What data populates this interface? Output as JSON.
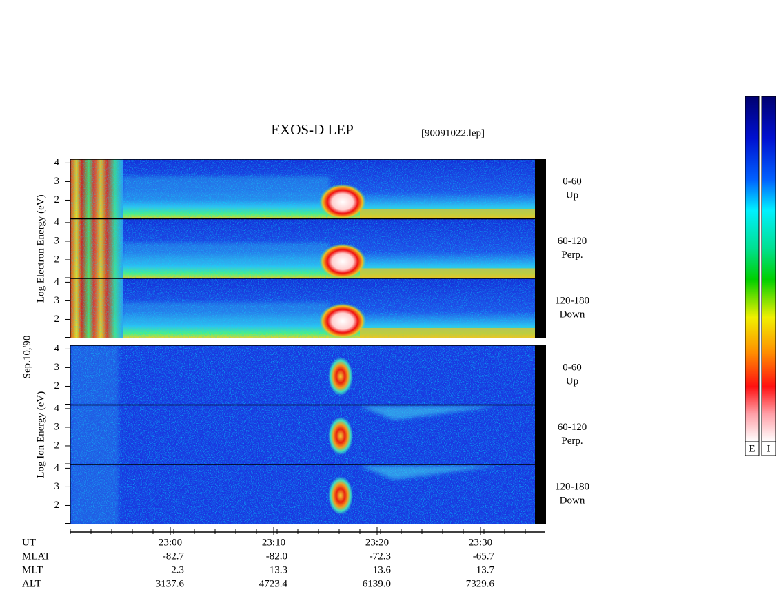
{
  "title": "EXOS-D LEP",
  "file": "[90091022.lep]",
  "date": "Sep.10,'90",
  "ylim": [
    1,
    4.2
  ],
  "yticks": [
    2,
    3,
    4
  ],
  "groups": [
    {
      "label": "Log Electron Energy (eV)",
      "panels": [
        {
          "angle": "0-60",
          "direction": "Up"
        },
        {
          "angle": "60-120",
          "direction": "Perp."
        },
        {
          "angle": "120-180",
          "direction": "Down"
        }
      ]
    },
    {
      "label": "Log Ion Energy (eV)",
      "panels": [
        {
          "angle": "0-60",
          "direction": "Up"
        },
        {
          "angle": "60-120",
          "direction": "Perp."
        },
        {
          "angle": "120-180",
          "direction": "Down"
        }
      ]
    }
  ],
  "time_axis": {
    "name": "UT",
    "ticks": [
      "23:00",
      "23:10",
      "23:20",
      "23:30"
    ],
    "rows": [
      {
        "name": "MLAT",
        "values": [
          "-82.7",
          "-82.0",
          "-72.3",
          "-65.7"
        ]
      },
      {
        "name": "MLT",
        "values": [
          "2.3",
          "13.3",
          "13.6",
          "13.7"
        ]
      },
      {
        "name": "ALT",
        "values": [
          "3137.6",
          "4723.4",
          "6139.0",
          "7329.6"
        ]
      }
    ]
  },
  "colorbars": [
    "E",
    "I"
  ]
}
